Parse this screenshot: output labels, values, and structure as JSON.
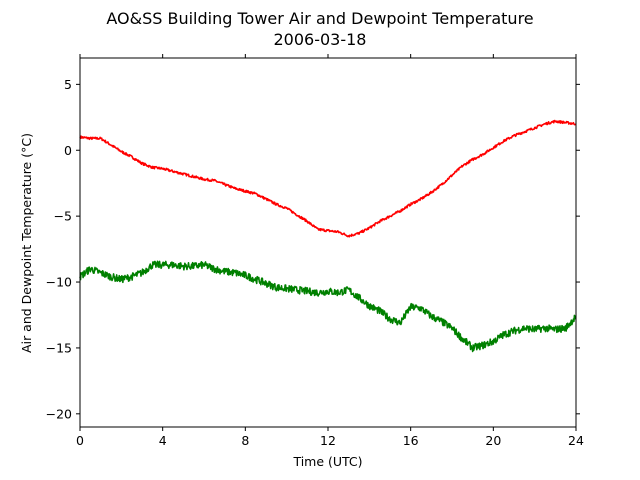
{
  "chart_data": {
    "type": "line",
    "title": "AO&SS Building Tower Air and Dewpoint Temperature",
    "subtitle": "2006-03-18",
    "xlabel": "Time (UTC)",
    "ylabel": "Air and Dewpoint Temperature (°C)",
    "xlim": [
      0,
      24
    ],
    "ylim": [
      -21,
      7
    ],
    "xticks": [
      0,
      4,
      8,
      12,
      16,
      20,
      24
    ],
    "yticks": [
      -20,
      -15,
      -10,
      -5,
      0,
      5
    ],
    "ytick_labels": [
      "−20",
      "−15",
      "−10",
      "−5",
      "0",
      "5"
    ],
    "grid": false,
    "legend": "none",
    "series": [
      {
        "color": "#ff0000",
        "x": [
          0,
          0.5,
          1,
          1.5,
          2,
          2.5,
          3,
          3.5,
          4,
          4.5,
          5,
          5.5,
          6,
          6.5,
          7,
          7.5,
          8,
          8.5,
          9,
          9.5,
          10,
          10.5,
          11,
          11.5,
          12,
          12.5,
          13,
          13.5,
          14,
          14.5,
          15,
          15.5,
          16,
          16.5,
          17,
          17.5,
          18,
          18.5,
          19,
          19.5,
          20,
          20.5,
          21,
          21.5,
          22,
          22.5,
          23,
          23.5,
          24
        ],
        "y": [
          1.0,
          0.9,
          0.9,
          0.4,
          -0.1,
          -0.5,
          -1.0,
          -1.3,
          -1.4,
          -1.6,
          -1.8,
          -2.0,
          -2.2,
          -2.3,
          -2.6,
          -2.9,
          -3.1,
          -3.3,
          -3.7,
          -4.1,
          -4.4,
          -4.9,
          -5.4,
          -6.0,
          -6.1,
          -6.2,
          -6.5,
          -6.3,
          -5.9,
          -5.4,
          -5.0,
          -4.6,
          -4.1,
          -3.7,
          -3.2,
          -2.6,
          -1.9,
          -1.2,
          -0.7,
          -0.3,
          0.2,
          0.7,
          1.1,
          1.4,
          1.7,
          2.0,
          2.2,
          2.1,
          2.0
        ]
      },
      {
        "color": "#008000",
        "x": [
          0,
          0.5,
          1,
          1.5,
          2,
          2.5,
          3,
          3.5,
          4,
          4.5,
          5,
          5.5,
          6,
          6.5,
          7,
          7.5,
          8,
          8.5,
          9,
          9.5,
          10,
          10.5,
          11,
          11.5,
          12,
          12.5,
          13,
          13.5,
          14,
          14.5,
          15,
          15.5,
          16,
          16.5,
          17,
          17.5,
          18,
          18.5,
          19,
          19.5,
          20,
          20.5,
          21,
          21.5,
          22,
          22.5,
          23,
          23.5,
          24
        ],
        "y": [
          -9.6,
          -9.0,
          -9.3,
          -9.6,
          -9.8,
          -9.6,
          -9.3,
          -8.7,
          -8.7,
          -8.7,
          -8.8,
          -8.8,
          -8.7,
          -9.0,
          -9.2,
          -9.3,
          -9.5,
          -9.8,
          -10.1,
          -10.4,
          -10.5,
          -10.6,
          -10.7,
          -10.8,
          -10.7,
          -10.8,
          -10.6,
          -11.2,
          -11.8,
          -12.2,
          -12.8,
          -13.1,
          -11.9,
          -12.0,
          -12.6,
          -13.0,
          -13.5,
          -14.3,
          -15.0,
          -14.8,
          -14.5,
          -14.0,
          -13.7,
          -13.5,
          -13.6,
          -13.5,
          -13.6,
          -13.5,
          -12.6
        ]
      }
    ]
  }
}
